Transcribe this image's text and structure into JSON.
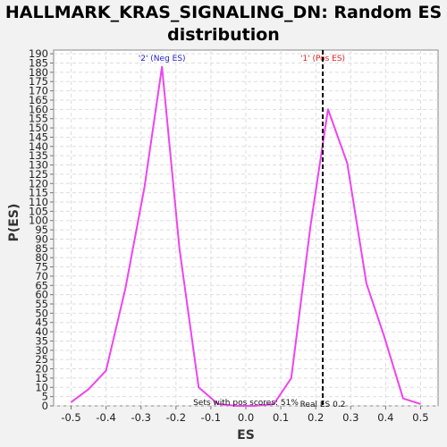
{
  "chart_data": {
    "type": "line",
    "title_line1": "HALLMARK_KRAS_SIGNALING_DN: Random ES",
    "title_line2": "distribution",
    "xlabel": "ES",
    "ylabel": "P(ES)",
    "xlim": [
      -0.55,
      0.55
    ],
    "ylim": [
      0,
      192
    ],
    "x_ticks": [
      -0.5,
      -0.4,
      -0.3,
      -0.2,
      -0.1,
      0.0,
      0.1,
      0.2,
      0.3,
      0.4,
      0.5
    ],
    "y_ticks": [
      0,
      5,
      10,
      15,
      20,
      25,
      30,
      35,
      40,
      45,
      50,
      55,
      60,
      65,
      70,
      75,
      80,
      85,
      90,
      95,
      100,
      105,
      110,
      115,
      120,
      125,
      130,
      135,
      140,
      145,
      150,
      155,
      160,
      165,
      170,
      175,
      180,
      185,
      190
    ],
    "grid": true,
    "series": [
      {
        "color": "#ee44ee",
        "x": [
          -0.5,
          -0.45,
          -0.4,
          -0.345,
          -0.29,
          -0.24,
          -0.19,
          -0.135,
          -0.08,
          -0.025,
          0.025,
          0.08,
          0.13,
          0.185,
          0.235,
          0.29,
          0.345,
          0.395,
          0.45,
          0.5
        ],
        "y": [
          2,
          9,
          19,
          63,
          118,
          183,
          85,
          10,
          1,
          0,
          0,
          1,
          15,
          97,
          160,
          131,
          66,
          38,
          4,
          1
        ]
      }
    ],
    "annotations": {
      "neg_label": "'2' (Neg ES)",
      "neg_color": "#2222cc",
      "neg_x": -0.24,
      "pos_label": "'1' (Pos ES)",
      "pos_color": "#dd2222",
      "pos_x": 0.22,
      "real_es_x": 0.22,
      "real_es_label": "Real ES 0.2",
      "pos_scores_text": "Sets with pos scores: 51%",
      "pos_scores_x": 0.0
    }
  }
}
